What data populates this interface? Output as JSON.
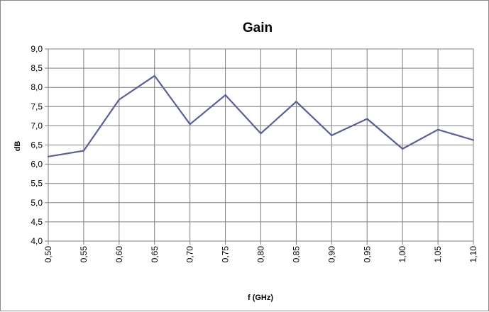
{
  "chart_data": {
    "type": "line",
    "title": "Gain",
    "xlabel": "f (GHz)",
    "ylabel": "dB",
    "categories": [
      "0,50",
      "0,55",
      "0,60",
      "0,65",
      "0,70",
      "0,75",
      "0,80",
      "0,85",
      "0,90",
      "0,95",
      "1,00",
      "1,05",
      "1,10"
    ],
    "x": [
      0.5,
      0.55,
      0.6,
      0.65,
      0.7,
      0.75,
      0.8,
      0.85,
      0.9,
      0.95,
      1.0,
      1.05,
      1.1
    ],
    "y_ticks": [
      "4,0",
      "4,5",
      "5,0",
      "5,5",
      "6,0",
      "6,5",
      "7,0",
      "7,5",
      "8,0",
      "8,5",
      "9,0"
    ],
    "ylim": [
      4.0,
      9.0
    ],
    "grid": true,
    "legend": "none",
    "series": [
      {
        "color": "#5b5f97",
        "values": [
          6.2,
          6.35,
          7.68,
          8.3,
          7.04,
          7.8,
          6.8,
          7.63,
          6.75,
          7.18,
          6.4,
          6.9,
          6.63
        ]
      }
    ]
  }
}
